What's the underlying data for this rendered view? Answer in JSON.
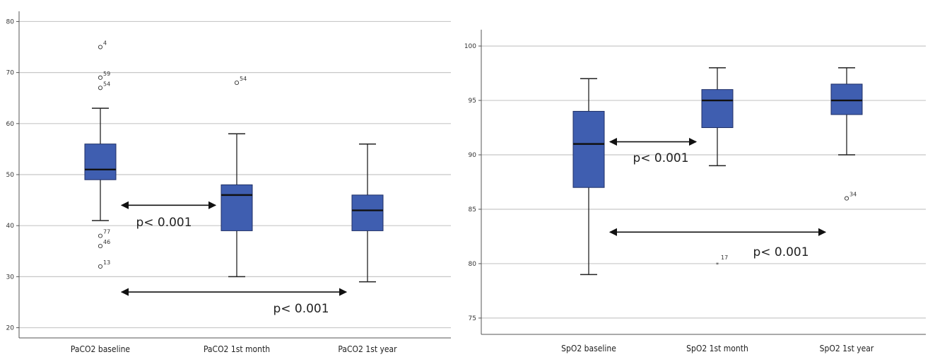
{
  "colors": {
    "box_fill": "#3f5eb0",
    "box_stroke": "#1f2f66",
    "median": "#111111",
    "grid": "#c8c8c8",
    "axis": "#555555",
    "whisker": "#222222",
    "arrow": "#111111"
  },
  "chart_data": [
    {
      "type": "box",
      "title": "",
      "xlabel": "",
      "ylabel": "",
      "ylim": [
        18,
        82
      ],
      "yticks": [
        20,
        30,
        40,
        50,
        60,
        70,
        80
      ],
      "grid": true,
      "categories": [
        "PaCO2 baseline",
        "PaCO2 1st month",
        "PaCO2 1st year"
      ],
      "boxes": [
        {
          "min": 41,
          "q1": 49,
          "median": 51,
          "q3": 56,
          "max": 63,
          "outliers": [
            {
              "value": 75,
              "label": "4"
            },
            {
              "value": 69,
              "label": "59"
            },
            {
              "value": 67,
              "label": "54"
            },
            {
              "value": 38,
              "label": "77"
            },
            {
              "value": 36,
              "label": "46"
            },
            {
              "value": 32,
              "label": "13"
            }
          ]
        },
        {
          "min": 30,
          "q1": 39,
          "median": 46,
          "q3": 48,
          "max": 58,
          "outliers": [
            {
              "value": 68,
              "label": "54"
            }
          ]
        },
        {
          "min": 29,
          "q1": 39,
          "median": 43,
          "q3": 46,
          "max": 56,
          "outliers": []
        }
      ],
      "annotations": [
        {
          "text": "p< 0.001",
          "from": "PaCO2 baseline",
          "to": "PaCO2 1st month",
          "y": 44
        },
        {
          "text": "p< 0.001",
          "from": "PaCO2 baseline",
          "to": "PaCO2 1st year",
          "y": 27
        }
      ]
    },
    {
      "type": "box",
      "title": "",
      "xlabel": "",
      "ylabel": "",
      "ylim": [
        73.5,
        101.5
      ],
      "yticks": [
        75,
        80,
        85,
        90,
        95,
        100
      ],
      "grid": true,
      "categories": [
        "SpO2 baseline",
        "SpO2 1st month",
        "SpO2 1st year"
      ],
      "boxes": [
        {
          "min": 79,
          "q1": 87,
          "median": 91,
          "q3": 94,
          "max": 97,
          "outliers": [
            {
              "value": 80,
              "label": "17",
              "marker": "star"
            }
          ]
        },
        {
          "min": 89,
          "q1": 92.5,
          "median": 95,
          "q3": 96,
          "max": 98,
          "outliers": []
        },
        {
          "min": 90,
          "q1": 93.7,
          "median": 95,
          "q3": 96.5,
          "max": 98,
          "outliers": [
            {
              "value": 86,
              "label": "34"
            }
          ]
        }
      ],
      "annotations": [
        {
          "text": "p< 0.001",
          "from": "SpO2 baseline",
          "to": "SpO2 1st month",
          "y": 91.2
        },
        {
          "text": "p< 0.001",
          "from": "SpO2 baseline",
          "to": "SpO2 1st year",
          "y": 82.9
        }
      ]
    }
  ]
}
